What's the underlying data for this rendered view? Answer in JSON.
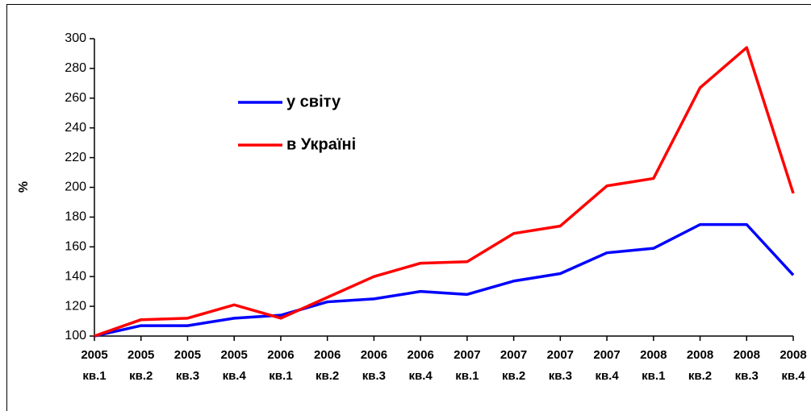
{
  "chart_data": {
    "type": "line",
    "ylabel": "%",
    "categories": [
      [
        "2005",
        "кв.1"
      ],
      [
        "2005",
        "кв.2"
      ],
      [
        "2005",
        "кв.3"
      ],
      [
        "2005",
        "кв.4"
      ],
      [
        "2006",
        "кв.1"
      ],
      [
        "2006",
        "кв.2"
      ],
      [
        "2006",
        "кв.3"
      ],
      [
        "2006",
        "кв.4"
      ],
      [
        "2007",
        "кв.1"
      ],
      [
        "2007",
        "кв.2"
      ],
      [
        "2007",
        "кв.3"
      ],
      [
        "2007",
        "кв.4"
      ],
      [
        "2008",
        "кв.1"
      ],
      [
        "2008",
        "кв.2"
      ],
      [
        "2008",
        "кв.3"
      ],
      [
        "2008",
        "кв.4"
      ]
    ],
    "series": [
      {
        "name": "у світу",
        "color": "#0000ff",
        "values": [
          100,
          107,
          107,
          112,
          114,
          123,
          125,
          130,
          128,
          137,
          142,
          156,
          159,
          175,
          175,
          141
        ]
      },
      {
        "name": "в Україні",
        "color": "#ff0000",
        "values": [
          100,
          111,
          112,
          121,
          112,
          126,
          140,
          149,
          150,
          169,
          174,
          201,
          206,
          267,
          294,
          196
        ]
      }
    ],
    "ylim": [
      100,
      300
    ],
    "yticks": [
      100,
      120,
      140,
      160,
      180,
      200,
      220,
      240,
      260,
      280,
      300
    ],
    "grid": false
  }
}
